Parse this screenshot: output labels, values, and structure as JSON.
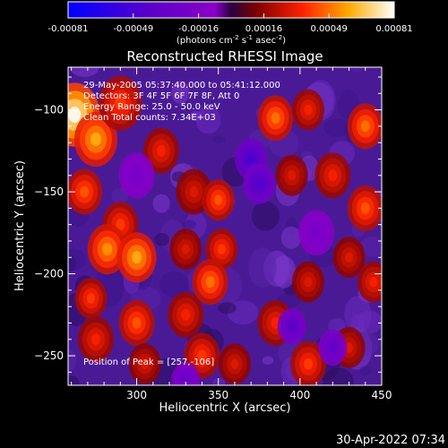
{
  "chart_data": {
    "type": "heatmap",
    "title": "Reconstructed RHESSI Image",
    "xlabel": "Heliocentric X (arcsec)",
    "ylabel": "Heliocentric Y (arcsec)",
    "xlim": [
      258,
      450
    ],
    "ylim": [
      -268,
      -74
    ],
    "x_ticks": [
      300,
      350,
      400,
      450
    ],
    "y_ticks": [
      -100,
      -150,
      -200,
      -250
    ],
    "colorbar": {
      "range": [
        -0.00081,
        0.00081
      ],
      "tick_labels": [
        "-0.00081",
        "-0.00049",
        "-0.00016",
        "0.00016",
        "0.00049",
        "0.00081"
      ],
      "unit_prefix": "(photons cm",
      "unit_exp1": "-2",
      "unit_mid": " s",
      "unit_exp2": "-1",
      "unit_mid2": " asec",
      "unit_exp3": "-2",
      "unit_suffix": ")"
    },
    "annotations": [
      "29-May-2005 05:37:40.000 to 05:41:12.000",
      "Detectors: 3F 4F 5F 6F 7F 8F, Att 0",
      "Energy Range: 25.0 - 50.0 keV",
      "Clean    Total counts: 7.34E+03"
    ],
    "peak_label": "Position of Peak = [257,-106]",
    "peak": {
      "x": 257,
      "y": -106
    },
    "blobs": [
      {
        "x": 262,
        "y": -103,
        "v": 0.00081,
        "r": 14
      },
      {
        "x": 275,
        "y": -118,
        "v": 0.0006,
        "r": 12
      },
      {
        "x": 290,
        "y": -96,
        "v": 0.0004,
        "r": 12
      },
      {
        "x": 268,
        "y": -150,
        "v": 0.00045,
        "r": 10
      },
      {
        "x": 290,
        "y": -170,
        "v": 0.0004,
        "r": 10
      },
      {
        "x": 282,
        "y": -185,
        "v": 0.00055,
        "r": 11
      },
      {
        "x": 300,
        "y": -190,
        "v": 0.0006,
        "r": 11
      },
      {
        "x": 272,
        "y": -215,
        "v": 0.0004,
        "r": 9
      },
      {
        "x": 275,
        "y": -240,
        "v": 0.00035,
        "r": 10
      },
      {
        "x": 300,
        "y": -230,
        "v": 0.00045,
        "r": 10
      },
      {
        "x": 330,
        "y": -225,
        "v": 0.00035,
        "r": 10
      },
      {
        "x": 340,
        "y": -250,
        "v": 0.0004,
        "r": 10
      },
      {
        "x": 305,
        "y": -255,
        "v": 0.0003,
        "r": 9
      },
      {
        "x": 315,
        "y": -125,
        "v": 0.00035,
        "r": 10
      },
      {
        "x": 335,
        "y": -150,
        "v": 0.0003,
        "r": 10
      },
      {
        "x": 350,
        "y": -155,
        "v": 0.00045,
        "r": 9
      },
      {
        "x": 352,
        "y": -185,
        "v": 0.0004,
        "r": 9
      },
      {
        "x": 345,
        "y": -205,
        "v": 0.0005,
        "r": 10
      },
      {
        "x": 330,
        "y": -185,
        "v": 0.0003,
        "r": 9
      },
      {
        "x": 385,
        "y": -105,
        "v": 0.0005,
        "r": 10
      },
      {
        "x": 405,
        "y": -100,
        "v": 0.00035,
        "r": 9
      },
      {
        "x": 395,
        "y": -140,
        "v": 0.0003,
        "r": 9
      },
      {
        "x": 420,
        "y": -140,
        "v": 0.00035,
        "r": 10
      },
      {
        "x": 440,
        "y": -110,
        "v": 0.0005,
        "r": 10
      },
      {
        "x": 440,
        "y": -160,
        "v": 0.00045,
        "r": 10
      },
      {
        "x": 430,
        "y": -190,
        "v": 0.0003,
        "r": 9
      },
      {
        "x": 445,
        "y": -205,
        "v": 0.00035,
        "r": 9
      },
      {
        "x": 405,
        "y": -205,
        "v": 0.0003,
        "r": 9
      },
      {
        "x": 385,
        "y": -230,
        "v": 0.00035,
        "r": 10
      },
      {
        "x": 405,
        "y": -255,
        "v": 0.0004,
        "r": 10
      },
      {
        "x": 430,
        "y": -245,
        "v": 0.0003,
        "r": 9
      },
      {
        "x": 360,
        "y": -255,
        "v": 0.0003,
        "r": 9
      },
      {
        "x": 370,
        "y": -130,
        "v": -0.0005,
        "r": 9
      },
      {
        "x": 375,
        "y": -145,
        "v": -0.00045,
        "r": 9
      },
      {
        "x": 395,
        "y": -232,
        "v": -0.0004,
        "r": 8
      },
      {
        "x": 420,
        "y": -245,
        "v": -0.00035,
        "r": 8
      },
      {
        "x": 330,
        "y": -265,
        "v": -0.0003,
        "r": 8
      },
      {
        "x": 300,
        "y": -140,
        "v": -0.0002,
        "r": 10
      },
      {
        "x": 410,
        "y": -175,
        "v": -0.0002,
        "r": 10
      }
    ]
  },
  "footer": {
    "timestamp": "30-Apr-2022 07:34"
  }
}
